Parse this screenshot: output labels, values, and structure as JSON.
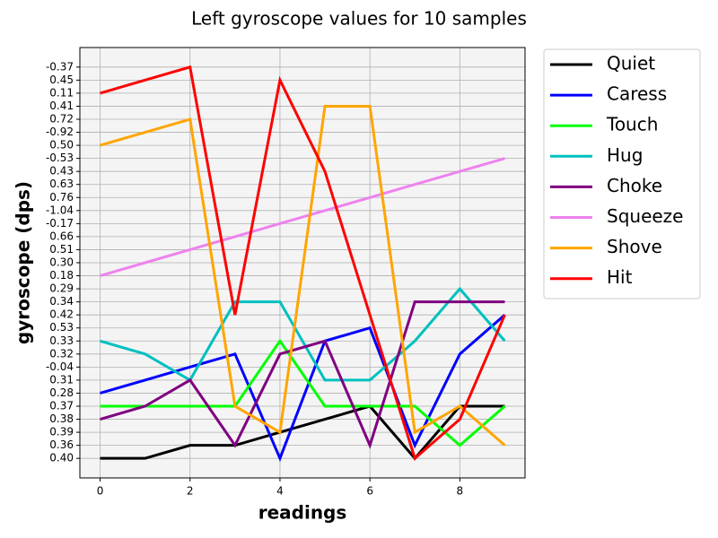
{
  "chart_data": {
    "type": "line",
    "title": "Left gyroscope values for 10 samples",
    "xlabel": "readings",
    "ylabel": "gyroscope (dps)",
    "x": [
      0,
      1,
      2,
      3,
      4,
      5,
      6,
      7,
      8,
      9
    ],
    "xlim": [
      -0.45,
      9.45
    ],
    "xticks": [
      0,
      2,
      4,
      6,
      8
    ],
    "ycategories": [
      "0.40",
      "0.36",
      "0.39",
      "0.38",
      "0.37",
      "0.28",
      "0.31",
      "-0.04",
      "0.32",
      "0.33",
      "0.53",
      "0.42",
      "0.34",
      "0.29",
      "0.18",
      "0.30",
      "0.51",
      "0.66",
      "-0.17",
      "-1.04",
      "0.76",
      "0.63",
      "0.43",
      "-0.53",
      "0.50",
      "-0.92",
      "0.72",
      "0.41",
      "0.11",
      "0.45",
      "-0.37"
    ],
    "grid": true,
    "legend": "outside upper right",
    "series": [
      {
        "name": "Quiet",
        "color": "#000000",
        "values": [
          "0.40",
          "0.40",
          "0.36",
          "0.36",
          "0.39",
          "0.38",
          "0.37",
          "0.40",
          "0.37",
          "0.37"
        ]
      },
      {
        "name": "Caress",
        "color": "#0000ff",
        "values": [
          "0.28",
          "0.31",
          "-0.04",
          "0.32",
          "0.40",
          "0.33",
          "0.53",
          "0.36",
          "0.32",
          "0.42"
        ]
      },
      {
        "name": "Touch",
        "color": "#00ff00",
        "values": [
          "0.37",
          "0.37",
          "0.37",
          "0.37",
          "0.33",
          "0.37",
          "0.37",
          "0.37",
          "0.36",
          "0.37"
        ]
      },
      {
        "name": "Hug",
        "color": "#00c0c0",
        "values": [
          "0.33",
          "0.32",
          "0.31",
          "0.34",
          "0.34",
          "0.31",
          "0.31",
          "0.33",
          "0.29",
          "0.33"
        ]
      },
      {
        "name": "Choke",
        "color": "#800080",
        "values": [
          "0.38",
          "0.37",
          "0.31",
          "0.36",
          "0.32",
          "0.33",
          "0.36",
          "0.34",
          "0.34",
          "0.34"
        ]
      },
      {
        "name": "Squeeze",
        "color": "#ee82ee",
        "values": [
          "0.18",
          "0.30",
          "0.51",
          "0.66",
          "-0.17",
          "-1.04",
          "0.76",
          "0.63",
          "0.43",
          "-0.53"
        ]
      },
      {
        "name": "Shove",
        "color": "#ffa500",
        "values": [
          "0.50",
          "-0.92",
          "0.72",
          "0.37",
          "0.39",
          "0.41",
          "0.41",
          "0.39",
          "0.37",
          "0.36"
        ]
      },
      {
        "name": "Hit",
        "color": "#ff0000",
        "values": [
          "0.11",
          "0.45",
          "-0.37",
          "0.42",
          "0.45",
          "0.43",
          "0.42",
          "0.40",
          "0.38",
          "0.42"
        ]
      }
    ]
  }
}
